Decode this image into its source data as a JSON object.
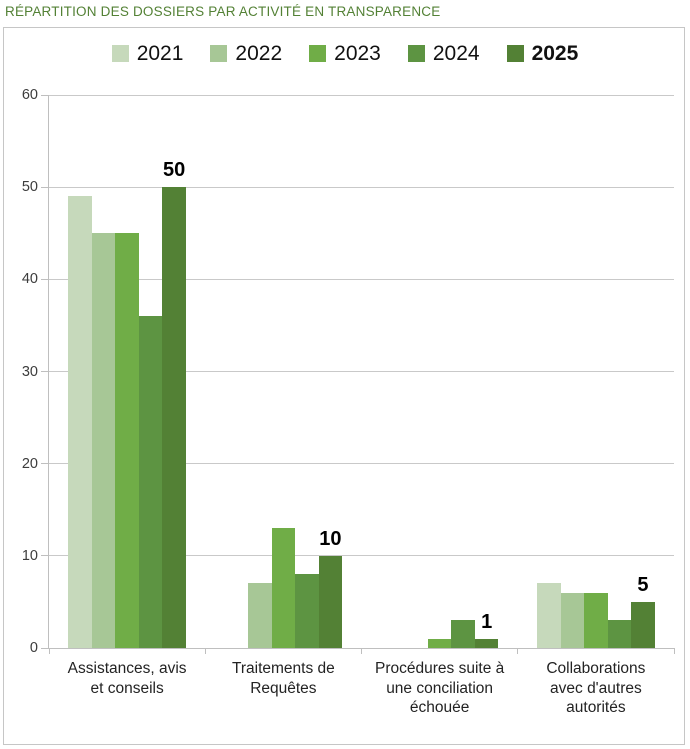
{
  "chart_data": {
    "type": "bar",
    "title": "RÉPARTITION DES DOSSIERS PAR ACTIVITÉ EN TRANSPARENCE",
    "title_color": "#538135",
    "categories": [
      "Assistances, avis et conseils",
      "Traitements de Requêtes",
      "Procédures suite à une conciliation échouée",
      "Collaborations avec d'autres autorités"
    ],
    "category_lines": [
      [
        "Assistances, avis",
        "et conseils"
      ],
      [
        "Traitements de",
        "Requêtes"
      ],
      [
        "Procédures suite à",
        "une conciliation",
        "échouée"
      ],
      [
        "Collaborations",
        "avec d'autres",
        "autorités"
      ]
    ],
    "series": [
      {
        "name": "2021",
        "color": "#c6d9bb",
        "bold": false,
        "values": [
          49,
          0,
          0,
          7
        ]
      },
      {
        "name": "2022",
        "color": "#a7c796",
        "bold": false,
        "values": [
          45,
          7,
          0,
          6
        ]
      },
      {
        "name": "2023",
        "color": "#70ad47",
        "bold": false,
        "values": [
          45,
          13,
          1,
          6
        ]
      },
      {
        "name": "2024",
        "color": "#5d9442",
        "bold": false,
        "values": [
          36,
          8,
          3,
          3
        ]
      },
      {
        "name": "2025",
        "color": "#538135",
        "bold": true,
        "values": [
          50,
          10,
          1,
          5
        ]
      }
    ],
    "data_labels": {
      "series": "2025",
      "values": [
        "50",
        "10",
        "1",
        "5"
      ]
    },
    "xlabel": "",
    "ylabel": "",
    "ylim": [
      0,
      60
    ],
    "ytick_step": 10,
    "y_tick_labels": [
      "0",
      "10",
      "20",
      "30",
      "40",
      "50",
      "60"
    ],
    "grid": true,
    "legend_position": "top"
  }
}
